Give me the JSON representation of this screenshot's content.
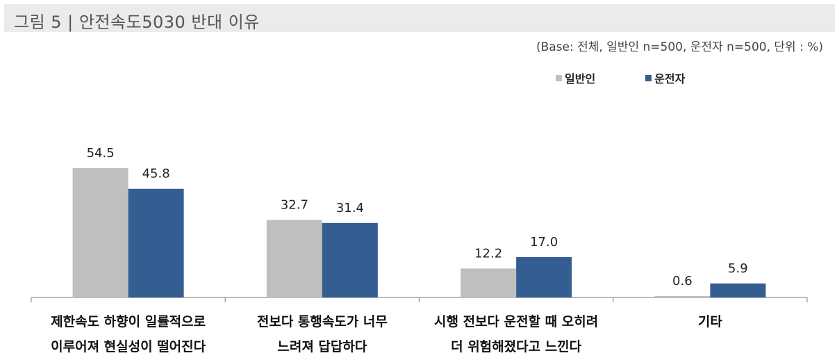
{
  "header": {
    "title": "그림 5  |  안전속도5030 반대 이유",
    "base_note": "(Base: 전체, 일반인 n=500, 운전자 n=500, 단위 : %)"
  },
  "colors": {
    "general": "#bfbfbf",
    "driver": "#345e91",
    "axis": "#a6a6a6"
  },
  "chart_data": {
    "type": "bar",
    "title": "",
    "xlabel": "",
    "ylabel": "",
    "ylim": [
      0,
      60
    ],
    "grid": false,
    "legend_position": "top-right",
    "categories": [
      [
        "제한속도 하향이 일률적으로",
        "이루어져 현실성이 떨어진다"
      ],
      [
        "전보다 통행속도가 너무",
        "느려져 답답하다"
      ],
      [
        "시행 전보다 운전할 때 오히려",
        "더 위험해졌다고 느낀다"
      ],
      [
        "기타"
      ]
    ],
    "series": [
      {
        "name": "일반인",
        "values": [
          54.5,
          32.7,
          12.2,
          0.6
        ]
      },
      {
        "name": "운전자",
        "values": [
          45.8,
          31.4,
          17.0,
          5.9
        ]
      }
    ]
  }
}
